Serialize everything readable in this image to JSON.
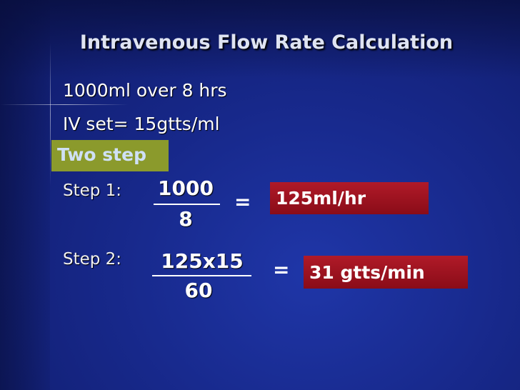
{
  "header": {
    "title": "Intravenous Flow Rate Calculation"
  },
  "lines": [
    "1000ml over 8 hrs",
    "IV set= 15gtts/ml"
  ],
  "highlight": "Two step",
  "steps": [
    {
      "label": "Step 1:",
      "numerator": "1000",
      "denominator": "8",
      "equals": "=",
      "result": "125ml/hr"
    },
    {
      "label": "Step 2:",
      "numerator": "125x15",
      "denominator": "60",
      "equals": "=",
      "result": "31 gtts/min"
    }
  ]
}
